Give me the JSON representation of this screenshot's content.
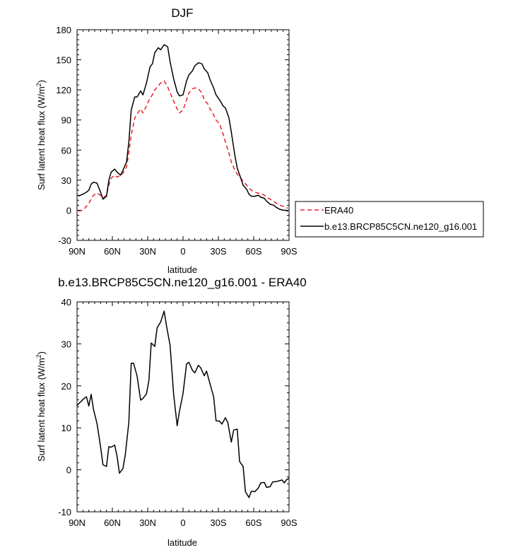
{
  "chart_data": [
    {
      "type": "line",
      "title": "DJF",
      "xlabel": "latitude",
      "ylabel": "Surf latent heat flux (W/m",
      "ylabel_sup": "2",
      "ylabel_close": ")",
      "xlim": [
        90,
        -90
      ],
      "ylim": [
        -30,
        180
      ],
      "xticks": [
        90,
        60,
        30,
        0,
        -30,
        -60,
        -90
      ],
      "xtick_labels": [
        "90N",
        "60N",
        "30N",
        "0",
        "30S",
        "60S",
        "90S"
      ],
      "yticks": [
        -30,
        0,
        30,
        60,
        90,
        120,
        150,
        180
      ],
      "ytick_labels": [
        "-30",
        "0",
        "30",
        "60",
        "90",
        "120",
        "150",
        "180"
      ],
      "legend": "outside-right",
      "series": [
        {
          "name": "ERA40",
          "color": "#e8202a",
          "dash": "dashed",
          "x": [
            89,
            85,
            82,
            80,
            78,
            76,
            73,
            70,
            68,
            65,
            63,
            61,
            58,
            56,
            53,
            51,
            48,
            46,
            44,
            41,
            39,
            36,
            34,
            31,
            28,
            26,
            24,
            21,
            19,
            16,
            13,
            11,
            8,
            5,
            3,
            0,
            -3,
            -5,
            -8,
            -10,
            -13,
            -16,
            -18,
            -21,
            -23,
            -26,
            -28,
            -31,
            -34,
            -36,
            -39,
            -41,
            -44,
            -46,
            -49,
            -51,
            -54,
            -56,
            -58,
            -61,
            -64,
            -66,
            -69,
            -71,
            -74,
            -77,
            -79,
            -82,
            -85,
            -87,
            -89
          ],
          "y": [
            -1,
            0,
            4,
            7,
            11,
            15,
            17,
            15,
            12,
            15,
            25,
            32,
            35,
            33,
            35,
            37,
            43,
            57,
            75,
            92,
            96,
            101,
            97,
            104,
            112,
            115,
            120,
            124,
            127,
            129,
            123,
            117,
            109,
            101,
            97,
            100,
            110,
            117,
            121,
            122,
            121,
            117,
            110,
            106,
            101,
            95,
            90,
            86,
            76,
            68,
            57,
            48,
            40,
            36,
            32,
            29,
            25,
            22,
            20,
            18,
            17,
            17,
            15,
            13,
            11,
            9,
            7,
            5,
            4,
            3,
            2
          ]
        },
        {
          "name": "b.e13.BRCP85C5CN.ne120_g16.001",
          "color": "#000000",
          "dash": "solid",
          "x": [
            89,
            85,
            82,
            80,
            78,
            76,
            73,
            70,
            68,
            65,
            63,
            61,
            58,
            56,
            53,
            51,
            48,
            46,
            44,
            41,
            39,
            36,
            34,
            31,
            28,
            26,
            24,
            21,
            19,
            16,
            13,
            11,
            8,
            5,
            3,
            0,
            -3,
            -5,
            -8,
            -10,
            -13,
            -16,
            -18,
            -21,
            -23,
            -26,
            -28,
            -31,
            -34,
            -36,
            -39,
            -41,
            -44,
            -46,
            -49,
            -51,
            -54,
            -56,
            -58,
            -61,
            -64,
            -66,
            -69,
            -71,
            -74,
            -77,
            -79,
            -82,
            -85,
            -87,
            -89
          ],
          "y": [
            14,
            16,
            18,
            20,
            26,
            28,
            27,
            18,
            11,
            14,
            30,
            38,
            41,
            38,
            35,
            40,
            48,
            68,
            100,
            113,
            113,
            119,
            115,
            127,
            143,
            146,
            157,
            162,
            160,
            165,
            163,
            148,
            131,
            118,
            114,
            115,
            129,
            135,
            139,
            144,
            147,
            146,
            141,
            137,
            130,
            122,
            115,
            110,
            104,
            102,
            92,
            78,
            55,
            42,
            32,
            25,
            21,
            16,
            14,
            14,
            15,
            13,
            12,
            9,
            6,
            5,
            3,
            1,
            0,
            0,
            -1
          ]
        }
      ]
    },
    {
      "type": "line",
      "title": "b.e13.BRCP85C5CN.ne120_g16.001 - ERA40",
      "xlabel": "latitude",
      "ylabel": "Surf latent heat flux (W/m",
      "ylabel_sup": "2",
      "ylabel_close": ")",
      "xlim": [
        90,
        -90
      ],
      "ylim": [
        -10,
        40
      ],
      "xticks": [
        90,
        60,
        30,
        0,
        -30,
        -60,
        -90
      ],
      "xtick_labels": [
        "90N",
        "60N",
        "30N",
        "0",
        "30S",
        "60S",
        "90S"
      ],
      "yticks": [
        -10,
        0,
        10,
        20,
        30,
        40
      ],
      "ytick_labels": [
        "-10",
        "0",
        "10",
        "20",
        "30",
        "40"
      ],
      "series": [
        {
          "color": "#000000",
          "dash": "solid",
          "x": [
            90,
            87,
            84,
            82,
            80,
            78,
            76,
            73,
            70,
            68,
            65,
            63,
            61,
            58,
            56,
            54,
            51,
            49,
            46,
            44,
            42,
            39,
            36,
            34,
            31,
            29,
            27,
            24,
            22,
            19,
            16,
            14,
            11,
            8,
            5,
            3,
            0,
            -3,
            -5,
            -8,
            -10,
            -13,
            -15,
            -18,
            -20,
            -23,
            -26,
            -28,
            -31,
            -33,
            -36,
            -38,
            -41,
            -43,
            -46,
            -48,
            -51,
            -53,
            -56,
            -58,
            -61,
            -64,
            -66,
            -69,
            -71,
            -74,
            -76,
            -79,
            -82,
            -84,
            -86,
            -88,
            -90
          ],
          "y": [
            15.3,
            16.2,
            17,
            17.4,
            15.2,
            18,
            14.4,
            11,
            5.5,
            1.2,
            0.8,
            5.5,
            5.4,
            5.9,
            3.2,
            -0.8,
            0.3,
            3.6,
            11.3,
            25.4,
            25.4,
            22.3,
            16.6,
            17,
            18.1,
            21.3,
            30.2,
            29.4,
            33.8,
            35.2,
            37.8,
            34.2,
            29.6,
            18,
            10.5,
            14,
            18.2,
            25.2,
            25.6,
            23.7,
            23.1,
            24.9,
            24.3,
            22.4,
            23.5,
            20.4,
            17.4,
            11.7,
            11.6,
            10.9,
            12.4,
            11.3,
            6.6,
            9.5,
            9.7,
            2,
            0.8,
            -5.2,
            -6.6,
            -5.1,
            -5.2,
            -4.3,
            -3.1,
            -3,
            -4.2,
            -4,
            -2.9,
            -2.8,
            -2.6,
            -2.4,
            -3.1,
            -2.3,
            -2
          ]
        }
      ]
    }
  ]
}
